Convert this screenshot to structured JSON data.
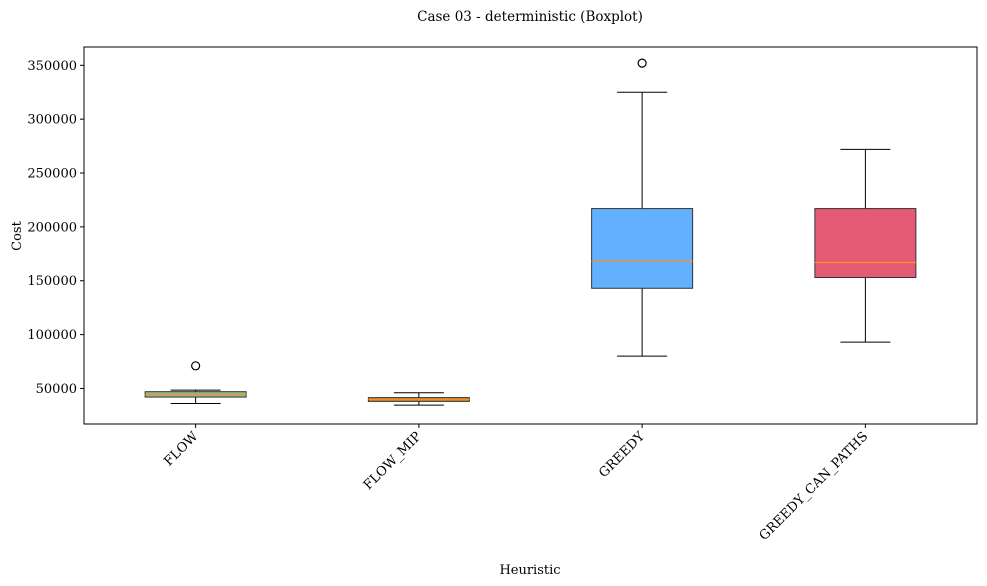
{
  "chart_data": {
    "type": "boxplot",
    "title": "Case 03 -  deterministic (Boxplot)",
    "xlabel": "Heuristic",
    "ylabel": "Cost",
    "ylim": [
      17000,
      367000
    ],
    "yticks": [
      50000,
      100000,
      150000,
      200000,
      250000,
      300000,
      350000
    ],
    "ytick_labels": [
      "50000",
      "100000",
      "150000",
      "200000",
      "250000",
      "300000",
      "350000"
    ],
    "grid": false,
    "legend": false,
    "categories": [
      "FLOW",
      "FLOW_MIP",
      "GREEDY",
      "GREEDY_CAN_PATHS"
    ],
    "boxes": [
      {
        "label": "FLOW",
        "whisker_low": 36000,
        "q1": 42000,
        "median": 44500,
        "q3": 47000,
        "whisker_high": 48500,
        "outliers": [
          71000
        ],
        "color": "#8fbc8f"
      },
      {
        "label": "FLOW_MIP",
        "whisker_low": 34500,
        "q1": 38000,
        "median": 40000,
        "q3": 41500,
        "whisker_high": 46000,
        "outliers": [],
        "color": "#cc8a2e"
      },
      {
        "label": "GREEDY",
        "whisker_low": 80000,
        "q1": 143000,
        "median": 168000,
        "q3": 217000,
        "whisker_high": 325000,
        "outliers": [
          352000
        ],
        "color": "#63b0ff"
      },
      {
        "label": "GREEDY_CAN_PATHS",
        "whisker_low": 93000,
        "q1": 153000,
        "median": 167000,
        "q3": 217000,
        "whisker_high": 272000,
        "outliers": [],
        "color": "#e55b75"
      }
    ],
    "median_color": "#ff8c2a"
  }
}
